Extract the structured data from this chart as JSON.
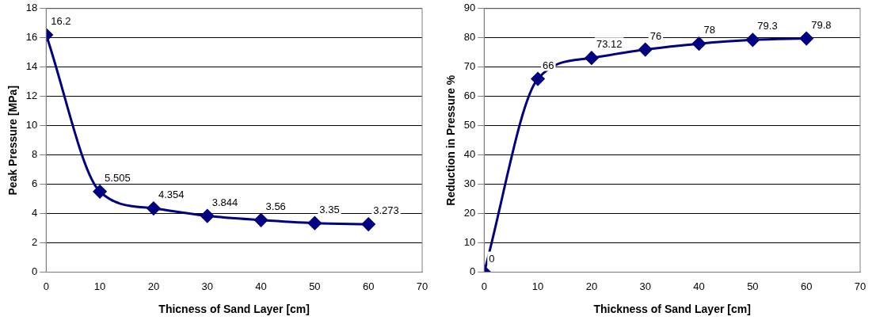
{
  "chart_data": [
    {
      "type": "line",
      "xlabel": "Thicness of Sand Layer [cm]",
      "ylabel": "Peak Pressure [MPa]",
      "x": [
        0,
        10,
        20,
        30,
        40,
        50,
        60
      ],
      "series": [
        {
          "color": "#000080",
          "values": [
            16.2,
            5.505,
            4.354,
            3.844,
            3.56,
            3.35,
            3.273
          ]
        }
      ],
      "xlim": [
        0,
        70
      ],
      "xticks": [
        0,
        10,
        20,
        30,
        40,
        50,
        60,
        70
      ],
      "ylim": [
        0,
        18
      ],
      "yticks": [
        0,
        2,
        4,
        6,
        8,
        10,
        12,
        14,
        16,
        18
      ],
      "grid": "y",
      "legend": false,
      "marker": "diamond",
      "line_style": "solid",
      "data_labels": true
    },
    {
      "type": "line",
      "xlabel": "Thickness of Sand Layer [cm]",
      "ylabel": "Reduction in Pressure %",
      "x": [
        0,
        10,
        20,
        30,
        40,
        50,
        60
      ],
      "series": [
        {
          "color": "#000080",
          "values": [
            0,
            66,
            73.12,
            76,
            78,
            79.3,
            79.8
          ]
        }
      ],
      "xlim": [
        0,
        70
      ],
      "xticks": [
        0,
        10,
        20,
        30,
        40,
        50,
        60,
        70
      ],
      "ylim": [
        0,
        90
      ],
      "yticks": [
        0,
        10,
        20,
        30,
        40,
        50,
        60,
        70,
        80,
        90
      ],
      "grid": "y",
      "legend": false,
      "marker": "diamond",
      "line_style": "solid",
      "data_labels": true
    }
  ]
}
